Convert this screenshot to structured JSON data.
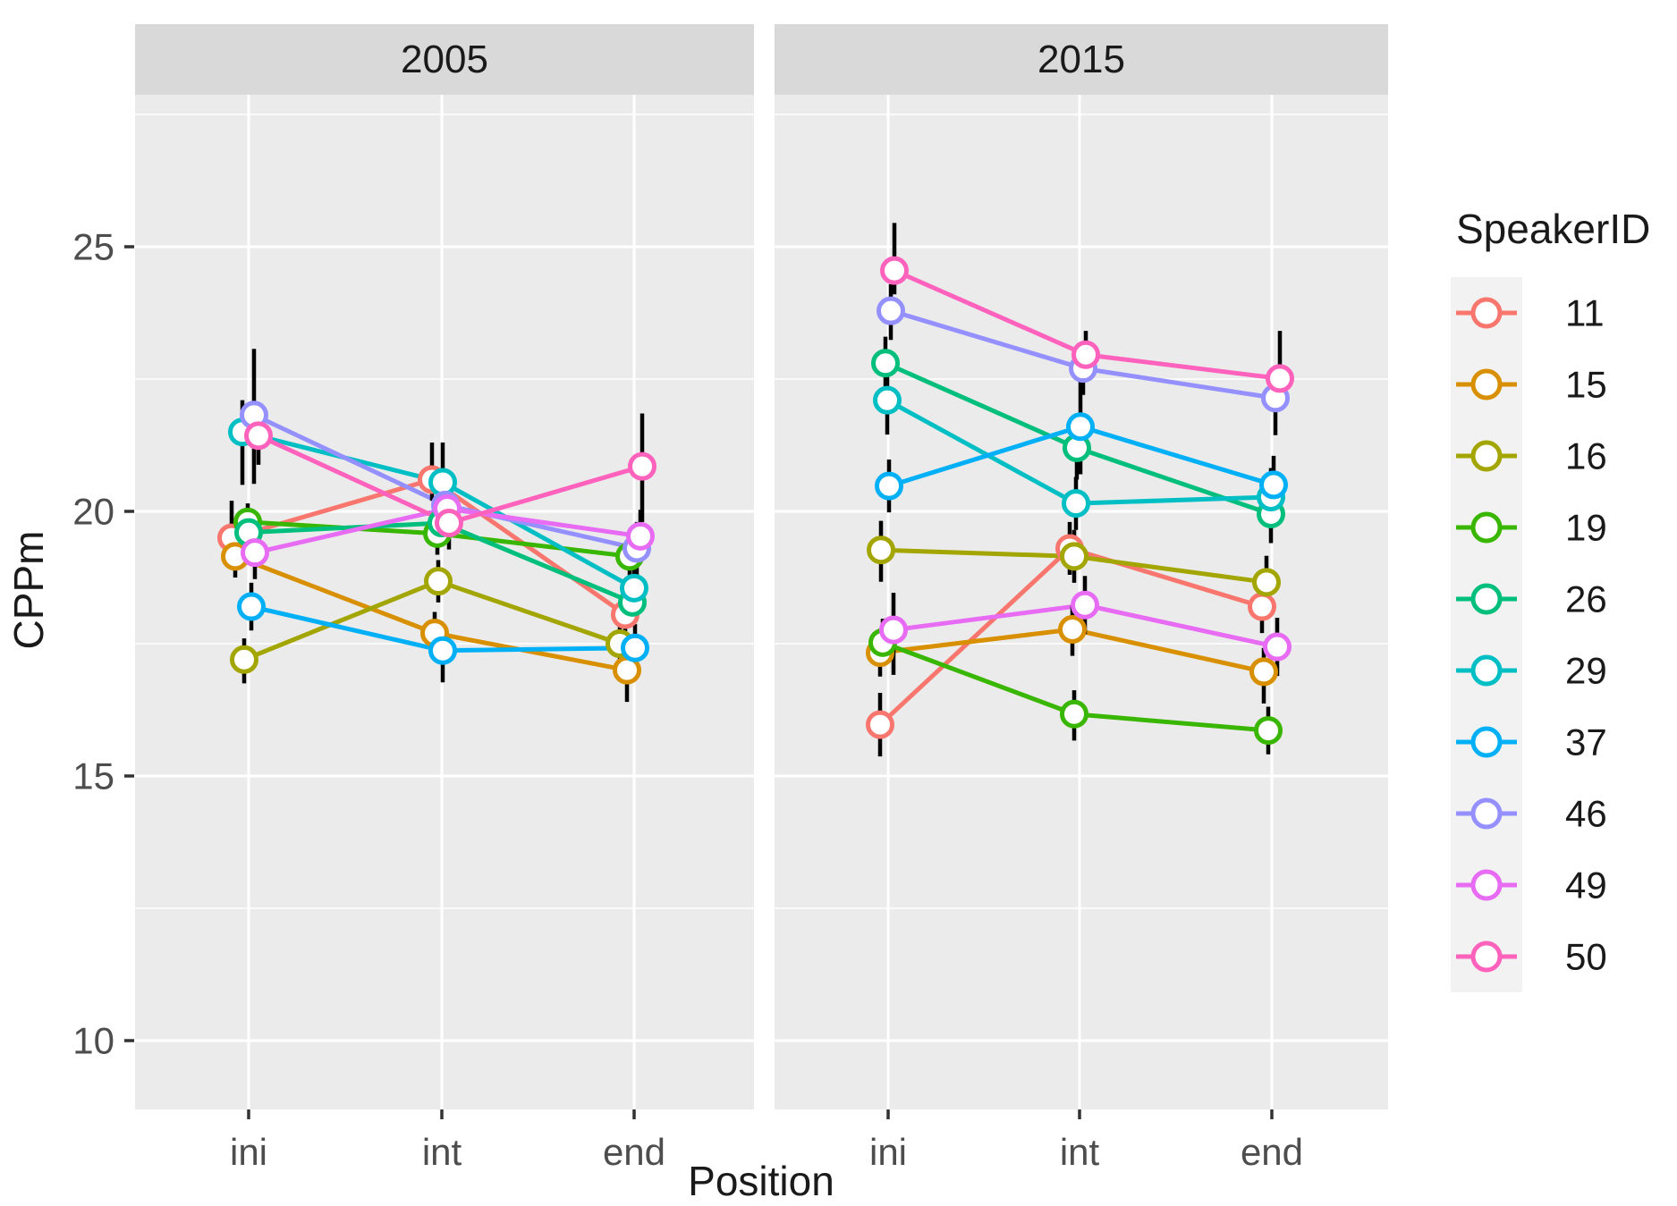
{
  "chart_data": {
    "type": "line",
    "facets": [
      "2005",
      "2015"
    ],
    "categories": [
      "ini",
      "int",
      "end"
    ],
    "xlabel": "Position",
    "ylabel": "CPPm",
    "y_ticks": [
      25,
      20,
      15,
      10
    ],
    "y_tick_labels": [
      "25",
      "20",
      "15",
      "10"
    ],
    "y_minor_ticks": [
      27.5,
      22.5,
      17.5,
      12.5
    ],
    "legend_title": "SpeakerID",
    "legend_position": "right",
    "grid": true,
    "marker": "open-circle",
    "series": [
      {
        "id": "11",
        "color": "#F8766D",
        "f2005": {
          "values": [
            19.5,
            20.6,
            18.05
          ],
          "dx": [
            -19,
            -11,
            -10
          ],
          "err_lo": [
            0.5,
            0.4,
            0.5
          ],
          "err_hi": [
            0.7,
            0.7,
            0.5
          ]
        },
        "f2015": {
          "values": [
            15.97,
            19.3,
            18.2
          ],
          "dx": [
            -9,
            -11,
            -11
          ],
          "err_lo": [
            0.6,
            0.5,
            0.5
          ],
          "err_hi": [
            0.6,
            0.5,
            0.5
          ]
        }
      },
      {
        "id": "15",
        "color": "#D89000",
        "f2005": {
          "values": [
            19.15,
            17.7,
            17.0
          ],
          "dx": [
            -15,
            -8,
            -8
          ],
          "err_lo": [
            0.4,
            0.5,
            0.6
          ],
          "err_hi": [
            0.4,
            0.4,
            0.4
          ]
        },
        "f2015": {
          "values": [
            17.33,
            17.77,
            16.97
          ],
          "dx": [
            -9,
            -8,
            -9
          ],
          "err_lo": [
            0.45,
            0.5,
            0.6
          ],
          "err_hi": [
            0.45,
            0.45,
            0.45
          ]
        }
      },
      {
        "id": "16",
        "color": "#A3A500",
        "f2005": {
          "values": [
            17.2,
            18.68,
            17.5
          ],
          "dx": [
            -5,
            -4,
            -16
          ],
          "err_lo": [
            0.45,
            0.4,
            0.4
          ],
          "err_hi": [
            0.4,
            0.4,
            0.4
          ]
        },
        "f2015": {
          "values": [
            19.27,
            19.15,
            18.66
          ],
          "dx": [
            -8,
            -6,
            -6
          ],
          "err_lo": [
            0.6,
            0.5,
            0.5
          ],
          "err_hi": [
            0.55,
            0.5,
            0.5
          ]
        }
      },
      {
        "id": "19",
        "color": "#39B600",
        "f2005": {
          "values": [
            19.8,
            19.58,
            19.15
          ],
          "dx": [
            -1,
            -5,
            -5
          ],
          "err_lo": [
            0.35,
            0.4,
            0.4
          ],
          "err_hi": [
            0.35,
            0.35,
            0.4
          ]
        },
        "f2015": {
          "values": [
            17.52,
            16.17,
            15.86
          ],
          "dx": [
            -6,
            -6,
            -4
          ],
          "err_lo": [
            0.45,
            0.5,
            0.45
          ],
          "err_hi": [
            0.45,
            0.45,
            0.45
          ]
        }
      },
      {
        "id": "26",
        "color": "#00BF7D",
        "f2005": {
          "values": [
            19.6,
            19.78,
            18.28
          ],
          "dx": [
            0,
            0,
            -2
          ],
          "err_lo": [
            0.4,
            0.4,
            0.45
          ],
          "err_hi": [
            0.4,
            0.4,
            0.4
          ]
        },
        "f2015": {
          "values": [
            22.8,
            21.2,
            19.95
          ],
          "dx": [
            -3,
            -3,
            -1
          ],
          "err_lo": [
            0.5,
            0.6,
            0.55
          ],
          "err_hi": [
            0.5,
            0.5,
            0.5
          ]
        }
      },
      {
        "id": "29",
        "color": "#00BFC4",
        "f2005": {
          "values": [
            21.5,
            20.55,
            18.55
          ],
          "dx": [
            -7,
            1,
            0
          ],
          "err_lo": [
            1.0,
            0.5,
            0.5
          ],
          "err_hi": [
            0.6,
            0.75,
            0.5
          ]
        },
        "f2015": {
          "values": [
            22.1,
            20.15,
            20.27
          ],
          "dx": [
            -1,
            -4,
            -1
          ],
          "err_lo": [
            0.65,
            0.5,
            0.6
          ],
          "err_hi": [
            0.5,
            0.5,
            0.55
          ]
        }
      },
      {
        "id": "37",
        "color": "#00B0F6",
        "f2005": {
          "values": [
            18.2,
            17.37,
            17.42
          ],
          "dx": [
            3,
            1,
            1
          ],
          "err_lo": [
            0.45,
            0.6,
            0.45
          ],
          "err_hi": [
            0.45,
            0.45,
            0.45
          ]
        },
        "f2015": {
          "values": [
            20.48,
            21.6,
            20.5
          ],
          "dx": [
            1,
            1,
            2
          ],
          "err_lo": [
            0.5,
            0.9,
            0.55
          ],
          "err_hi": [
            0.5,
            0.95,
            0.55
          ]
        }
      },
      {
        "id": "46",
        "color": "#9590FF",
        "f2005": {
          "values": [
            21.82,
            20.12,
            19.3
          ],
          "dx": [
            6,
            4,
            3
          ],
          "err_lo": [
            1.3,
            0.5,
            0.5
          ],
          "err_hi": [
            1.25,
            0.5,
            0.5
          ]
        },
        "f2015": {
          "values": [
            23.79,
            22.7,
            22.14
          ],
          "dx": [
            3,
            4,
            4
          ],
          "err_lo": [
            0.55,
            0.5,
            0.7
          ],
          "err_hi": [
            0.5,
            0.5,
            0.5
          ]
        }
      },
      {
        "id": "49",
        "color": "#E76BF3",
        "f2005": {
          "values": [
            19.22,
            20.05,
            19.53
          ],
          "dx": [
            7,
            6,
            7
          ],
          "err_lo": [
            0.5,
            0.5,
            0.5
          ],
          "err_hi": [
            0.5,
            0.5,
            0.5
          ]
        },
        "f2015": {
          "values": [
            17.76,
            18.23,
            17.44
          ],
          "dx": [
            6,
            6,
            6
          ],
          "err_lo": [
            0.85,
            0.55,
            0.55
          ],
          "err_hi": [
            0.7,
            0.55,
            0.55
          ]
        }
      },
      {
        "id": "50",
        "color": "#FF62BC",
        "f2005": {
          "values": [
            21.43,
            19.78,
            20.85
          ],
          "dx": [
            11,
            8,
            9
          ],
          "err_lo": [
            0.55,
            0.5,
            1.05
          ],
          "err_hi": [
            0.5,
            0.5,
            1.0
          ]
        },
        "f2015": {
          "values": [
            24.55,
            22.96,
            22.51
          ],
          "dx": [
            7,
            7,
            9
          ],
          "err_lo": [
            0.45,
            0.5,
            0.5
          ],
          "err_hi": [
            0.9,
            0.45,
            0.9
          ]
        }
      }
    ]
  },
  "style": {
    "panel_bg": "#EBEBEB",
    "strip_bg": "#D9D9D9",
    "gridline": "#FFFFFF",
    "errorbar": "#000000",
    "tick_mark": "#333333",
    "tick_text": "#4D4D4D",
    "title_text": "#1A1A1A",
    "marker_fill": "#FFFFFF",
    "legend_key_bg": "#F2F2F2"
  }
}
